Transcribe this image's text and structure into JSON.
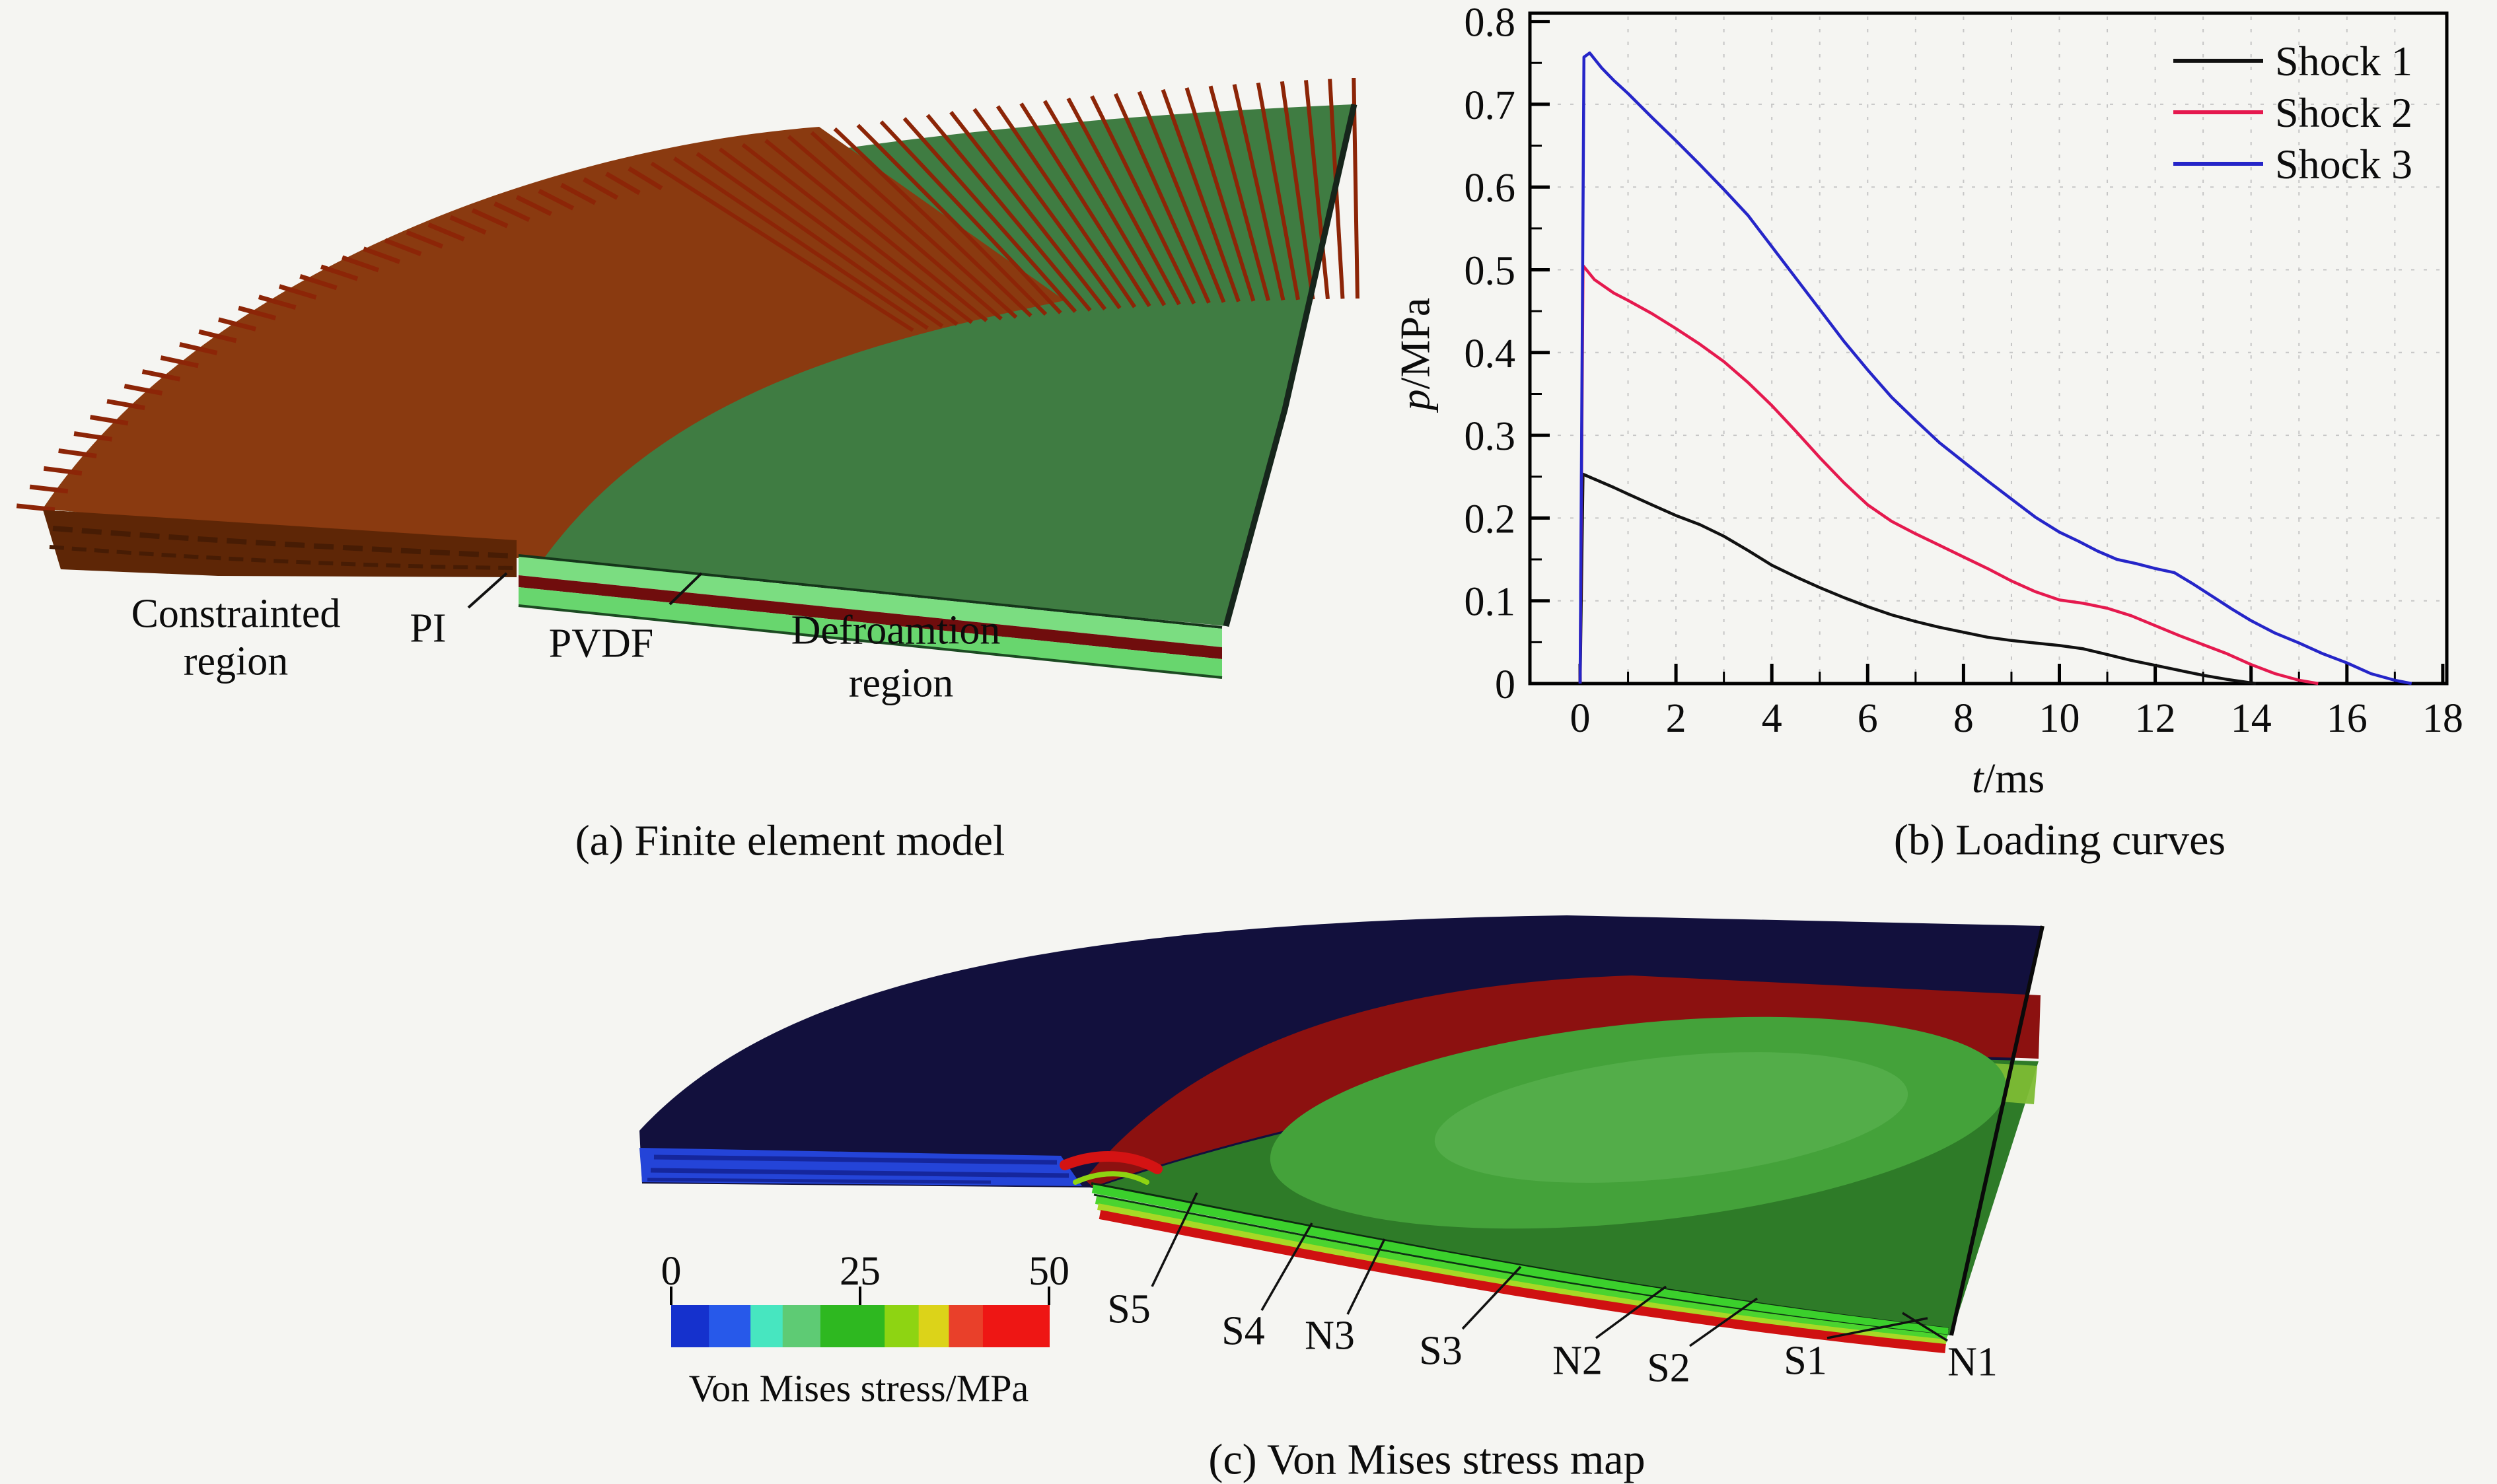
{
  "figure": {
    "background": "#f5f5f2"
  },
  "panel_a": {
    "caption": "(a) Finite element model",
    "labels": {
      "constrained_l1": "Constrainted",
      "constrained_l2": "region",
      "pi": "PI",
      "pvdf": "PVDF",
      "deformation_l1": "Defroamtion",
      "deformation_l2": "region"
    },
    "colors": {
      "region_brown": "#8a3a10",
      "mesh_red": "#8c2507",
      "top_green": "#3f7c42",
      "side_brown": "#5e2606",
      "pi_layer_green": "#7bdd81",
      "pvdf_layer_red": "#700d0d",
      "lower_layer_green": "#68d66e",
      "edge_dark": "#16251b"
    }
  },
  "panel_b": {
    "caption": "(b) Loading curves",
    "axes": {
      "x_var": "t",
      "x_unit": "/ms",
      "y_var": "p",
      "y_unit": "/MPa"
    }
  },
  "panel_c": {
    "caption": "(c) Von Mises stress map",
    "sensor_labels": [
      "S5",
      "S4",
      "N3",
      "S3",
      "N2",
      "S2",
      "S1",
      "N1"
    ],
    "colorbar": {
      "label": "Von Mises stress/MPa",
      "ticks": [
        "0",
        "25",
        "50"
      ],
      "segment_colors": [
        "#1531cd",
        "#2759ea",
        "#47e6c0",
        "#5ecb74",
        "#2eb820",
        "#8ed412",
        "#dcd319",
        "#e9402a",
        "#ee1614"
      ],
      "segment_widths": [
        0.1,
        0.11,
        0.085,
        0.1,
        0.17,
        0.09,
        0.08,
        0.09,
        0.175
      ]
    },
    "colors": {
      "outer_navy": "#12103d",
      "side_blue": "#2444d8",
      "side_blue_dark": "#15269c",
      "ring_red": "#8c1110",
      "inner_green": "#2e7b28",
      "inner_green_light": "#44a23a",
      "inner_green_lighter": "#53ad49",
      "upper_band_green": "#7dbc34",
      "layer_green": "#3bd02c",
      "layer_green2": "#4bd42f",
      "layer_yellow": "#a8d826",
      "layer_red": "#cf1111"
    }
  },
  "chart_data": {
    "type": "line",
    "title": "",
    "xlabel": "t/ms",
    "ylabel": "p/MPa",
    "xlim": [
      -1.05,
      18.1
    ],
    "ylim": [
      0,
      0.8
    ],
    "x_ticks": [
      0,
      2,
      4,
      6,
      8,
      10,
      12,
      14,
      16,
      18
    ],
    "y_tick_labels": [
      "0",
      "0.1",
      "0.2",
      "0.3",
      "0.4",
      "0.5",
      "0.6",
      "0.7",
      "0.8"
    ],
    "grid": true,
    "legend_position": "top-right",
    "series": [
      {
        "name": "Shock 1",
        "color": "#111111",
        "points": [
          [
            0,
            0
          ],
          [
            0.06,
            0.253
          ],
          [
            0.3,
            0.247
          ],
          [
            0.7,
            0.237
          ],
          [
            1,
            0.229
          ],
          [
            1.5,
            0.216
          ],
          [
            2,
            0.203
          ],
          [
            2.5,
            0.192
          ],
          [
            3,
            0.178
          ],
          [
            3.5,
            0.161
          ],
          [
            4,
            0.143
          ],
          [
            4.5,
            0.129
          ],
          [
            5,
            0.116
          ],
          [
            5.5,
            0.104
          ],
          [
            6,
            0.093
          ],
          [
            6.5,
            0.083
          ],
          [
            7,
            0.075
          ],
          [
            7.5,
            0.068
          ],
          [
            8,
            0.062
          ],
          [
            8.5,
            0.056
          ],
          [
            9,
            0.052
          ],
          [
            9.5,
            0.049
          ],
          [
            10,
            0.046
          ],
          [
            10.5,
            0.042
          ],
          [
            11,
            0.035
          ],
          [
            11.5,
            0.028
          ],
          [
            12,
            0.022
          ],
          [
            12.5,
            0.016
          ],
          [
            13,
            0.01
          ],
          [
            13.5,
            0.005
          ],
          [
            14.1,
            0
          ]
        ]
      },
      {
        "name": "Shock 2",
        "color": "#e5194e",
        "points": [
          [
            0,
            0
          ],
          [
            0.06,
            0.505
          ],
          [
            0.3,
            0.488
          ],
          [
            0.7,
            0.472
          ],
          [
            1,
            0.463
          ],
          [
            1.5,
            0.447
          ],
          [
            2,
            0.429
          ],
          [
            2.5,
            0.41
          ],
          [
            3,
            0.389
          ],
          [
            3.5,
            0.364
          ],
          [
            4,
            0.336
          ],
          [
            4.5,
            0.305
          ],
          [
            5,
            0.273
          ],
          [
            5.5,
            0.243
          ],
          [
            6,
            0.216
          ],
          [
            6.5,
            0.196
          ],
          [
            7,
            0.181
          ],
          [
            7.5,
            0.167
          ],
          [
            8,
            0.153
          ],
          [
            8.5,
            0.139
          ],
          [
            9,
            0.124
          ],
          [
            9.5,
            0.111
          ],
          [
            10,
            0.101
          ],
          [
            10.5,
            0.097
          ],
          [
            11,
            0.091
          ],
          [
            11.5,
            0.082
          ],
          [
            12,
            0.07
          ],
          [
            12.5,
            0.058
          ],
          [
            13,
            0.047
          ],
          [
            13.5,
            0.036
          ],
          [
            14,
            0.023
          ],
          [
            14.5,
            0.012
          ],
          [
            15,
            0.004
          ],
          [
            15.4,
            0
          ]
        ]
      },
      {
        "name": "Shock 3",
        "color": "#2525c8",
        "points": [
          [
            0,
            0
          ],
          [
            0.08,
            0.757
          ],
          [
            0.2,
            0.762
          ],
          [
            0.45,
            0.744
          ],
          [
            0.7,
            0.729
          ],
          [
            1,
            0.713
          ],
          [
            1.5,
            0.684
          ],
          [
            2,
            0.656
          ],
          [
            2.5,
            0.627
          ],
          [
            3,
            0.597
          ],
          [
            3.5,
            0.566
          ],
          [
            4,
            0.528
          ],
          [
            4.5,
            0.49
          ],
          [
            5,
            0.452
          ],
          [
            5.5,
            0.414
          ],
          [
            6,
            0.379
          ],
          [
            6.5,
            0.346
          ],
          [
            7,
            0.318
          ],
          [
            7.5,
            0.291
          ],
          [
            8,
            0.268
          ],
          [
            8.5,
            0.245
          ],
          [
            9,
            0.223
          ],
          [
            9.5,
            0.201
          ],
          [
            10,
            0.183
          ],
          [
            10.4,
            0.172
          ],
          [
            10.8,
            0.16
          ],
          [
            11.2,
            0.15
          ],
          [
            11.6,
            0.145
          ],
          [
            12,
            0.139
          ],
          [
            12.4,
            0.134
          ],
          [
            12.8,
            0.12
          ],
          [
            13.2,
            0.105
          ],
          [
            13.6,
            0.09
          ],
          [
            14,
            0.076
          ],
          [
            14.5,
            0.061
          ],
          [
            15,
            0.049
          ],
          [
            15.5,
            0.036
          ],
          [
            16,
            0.025
          ],
          [
            16.5,
            0.012
          ],
          [
            17,
            0.004
          ],
          [
            17.35,
            0
          ]
        ]
      }
    ]
  }
}
